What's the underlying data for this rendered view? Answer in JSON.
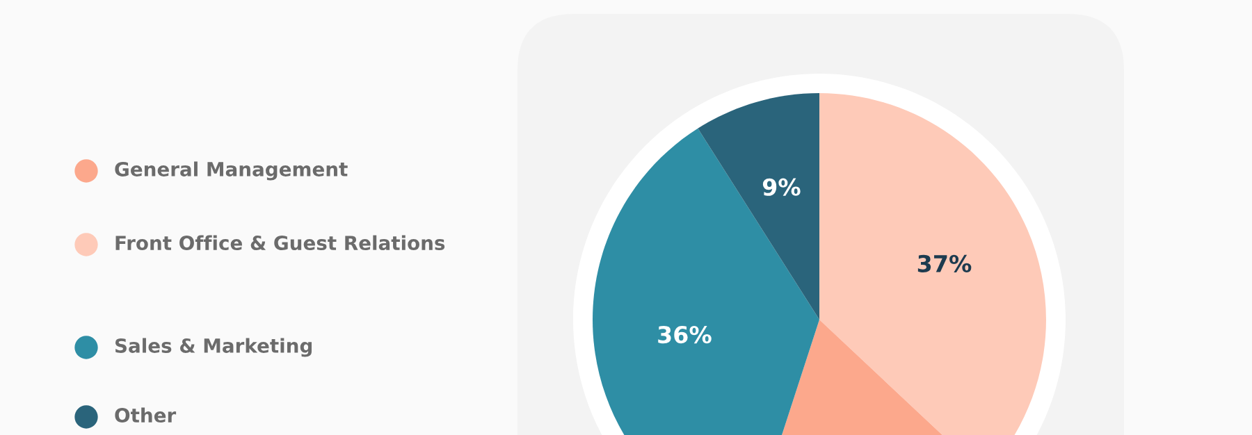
{
  "chart_data": {
    "type": "pie",
    "categories": [
      "Front Office & Guest Relations",
      "General Management",
      "Sales & Marketing",
      "Other"
    ],
    "values": [
      37,
      18,
      36,
      9
    ],
    "colors": [
      "#fecab8",
      "#fca88c",
      "#2e8ea5",
      "#2a647b"
    ],
    "value_labels": [
      "37%",
      null,
      "36%",
      "9%"
    ],
    "legend": "left"
  }
}
